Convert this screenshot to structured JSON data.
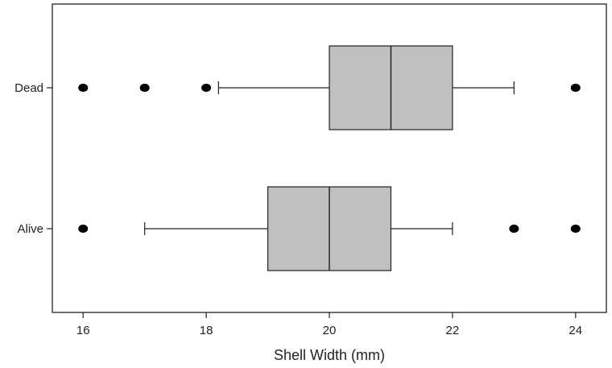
{
  "chart_data": {
    "type": "boxplot",
    "orientation": "horizontal",
    "title": "",
    "xlabel": "Shell Width (mm)",
    "ylabel": "",
    "xlim": [
      15.5,
      24.5
    ],
    "x_ticks": [
      16,
      18,
      20,
      22,
      24
    ],
    "x_tick_labels": [
      "16",
      "18",
      "20",
      "22",
      "24"
    ],
    "grid": false,
    "box_fill": "#c0c0c0",
    "groups": [
      {
        "label": "Dead",
        "whisker_low": 18.2,
        "q1": 20,
        "median": 21,
        "q3": 22,
        "whisker_high": 23,
        "outliers": [
          16,
          17,
          18,
          24
        ]
      },
      {
        "label": "Alive",
        "whisker_low": 17,
        "q1": 19,
        "median": 20,
        "q3": 21,
        "whisker_high": 22,
        "outliers": [
          16,
          23,
          24
        ]
      }
    ]
  }
}
